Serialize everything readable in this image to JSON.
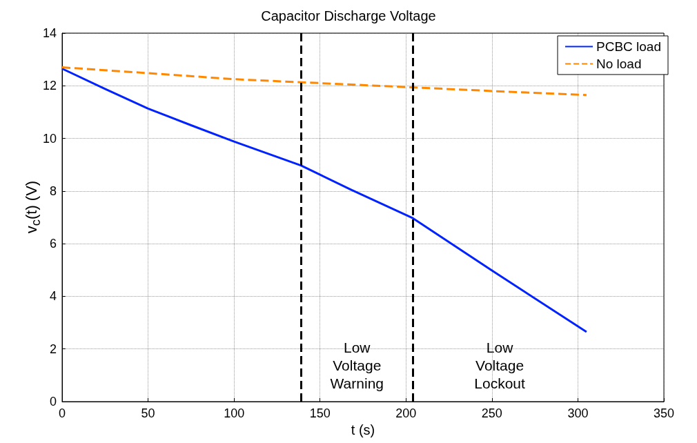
{
  "chart_data": {
    "type": "line",
    "title": "Capacitor Discharge Voltage",
    "xlabel": "t (s)",
    "ylabel": "v$_{c}$(t) (V)",
    "xlim": [
      0,
      350
    ],
    "xticks": [
      0,
      50,
      100,
      150,
      200,
      250,
      300,
      350
    ],
    "ylim": [
      0,
      14
    ],
    "yticks": [
      0,
      2,
      4,
      6,
      8,
      10,
      12,
      14
    ],
    "grid": true,
    "legend": "top right",
    "marker": "none",
    "series": [
      {
        "name": "PCBC load",
        "color": "#0022ff",
        "line_style": "solid",
        "x": [
          0,
          25,
          50,
          75,
          100,
          139,
          150,
          168,
          204,
          250,
          305
        ],
        "values": [
          12.65,
          11.88,
          11.13,
          10.5,
          9.88,
          8.97,
          8.62,
          8.05,
          6.97,
          4.98,
          2.65
        ]
      },
      {
        "name": "No load",
        "color": "#ff8800",
        "line_style": "dashed",
        "x": [
          0,
          50,
          100,
          150,
          200,
          250,
          305
        ],
        "values": [
          12.7,
          12.48,
          12.25,
          12.1,
          11.95,
          11.8,
          11.65
        ]
      }
    ],
    "ref_lines": [
      {
        "axis": "x",
        "value": 139,
        "color": "#000000",
        "line_style": "dashed"
      },
      {
        "axis": "x",
        "value": 204,
        "color": "#000000",
        "line_style": "dashed"
      }
    ],
    "annotations": [
      "Low\nVoltage\nWarning",
      "Low\nVoltage\nLockout"
    ]
  }
}
